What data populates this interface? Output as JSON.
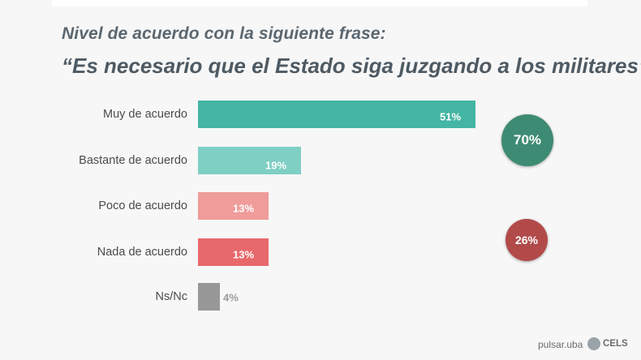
{
  "header": {
    "subtitle": "Nivel de acuerdo con la siguiente frase:",
    "title": "“Es necesario que el Estado siga juzgando a los militares”"
  },
  "chart_data": {
    "type": "bar",
    "orientation": "horizontal",
    "categories": [
      "Muy de acuerdo",
      "Bastante de acuerdo",
      "Poco de acuerdo",
      "Nada de acuerdo",
      "Ns/Nc"
    ],
    "values": [
      51,
      19,
      13,
      13,
      4
    ],
    "value_labels": [
      "51%",
      "19%",
      "13%",
      "13%",
      "4%"
    ],
    "colors": [
      "#45b5a4",
      "#7fcfc4",
      "#ef9c9b",
      "#e8696c",
      "#989898"
    ],
    "xlim": [
      0,
      51
    ],
    "grid": false,
    "summary_badges": [
      {
        "label": "70%",
        "value": 70,
        "color": "#3e8b73",
        "groups": [
          "Muy de acuerdo",
          "Bastante de acuerdo"
        ]
      },
      {
        "label": "26%",
        "value": 26,
        "color": "#b24a4a",
        "groups": [
          "Poco de acuerdo",
          "Nada de acuerdo"
        ]
      }
    ]
  },
  "footer": {
    "brand_left": "pulsar.uba",
    "brand_right": "CELS"
  }
}
